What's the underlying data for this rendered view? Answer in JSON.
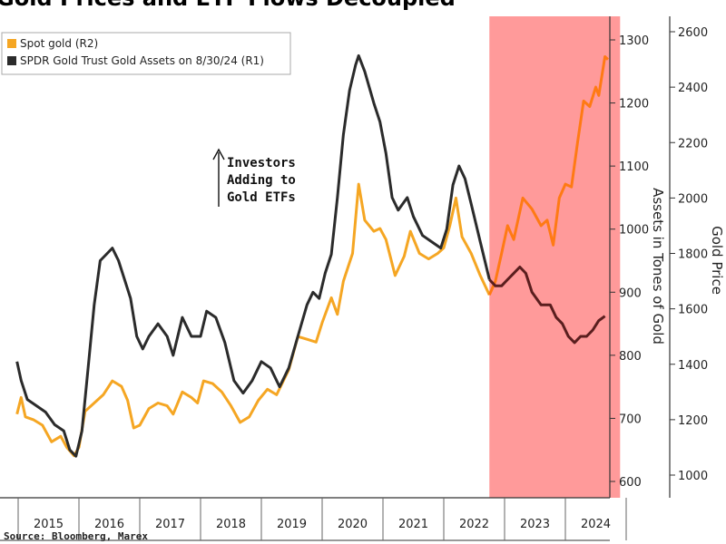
{
  "chart_data": {
    "type": "line",
    "title": "Gold Prices and ETF Flows Decoupled",
    "source": "Source: Bloomberg, Marex",
    "x_categories": [
      "2015",
      "2016",
      "2017",
      "2018",
      "2019",
      "2020",
      "2021",
      "2022",
      "2023",
      "2024"
    ],
    "left_axis": {
      "label": "Assets in Tones of Gold",
      "range": [
        570,
        1320
      ],
      "ticks": [
        600,
        700,
        800,
        900,
        1000,
        1100,
        1200,
        1300
      ]
    },
    "right_axis": {
      "label": "Gold Price",
      "range": [
        950,
        2650
      ],
      "ticks": [
        1000,
        1200,
        1400,
        1600,
        1800,
        2000,
        2200,
        2400,
        2600
      ]
    },
    "legend": {
      "placement": "top-left",
      "items": [
        {
          "label": "Spot gold (R2)",
          "color": "#F5A623"
        },
        {
          "label": "SPDR Gold Trust Gold Assets on 8/30/24 (R1)",
          "color": "#2b2b2b"
        }
      ]
    },
    "annotation": {
      "text_lines": [
        "Investors",
        "Adding to",
        "Gold ETFs"
      ]
    },
    "shaded_region": {
      "start": 2022.75,
      "end": 2024.9,
      "color": "#FF9A9A"
    },
    "series": [
      {
        "name": "Spot gold (R2)",
        "axis": "right",
        "color": "#F5A623",
        "color_in_shade": "#FF7A14",
        "points": [
          [
            2014.98,
            1220
          ],
          [
            2015.05,
            1280
          ],
          [
            2015.12,
            1210
          ],
          [
            2015.25,
            1200
          ],
          [
            2015.4,
            1180
          ],
          [
            2015.55,
            1120
          ],
          [
            2015.7,
            1140
          ],
          [
            2015.8,
            1100
          ],
          [
            2015.92,
            1070
          ],
          [
            2016.0,
            1100
          ],
          [
            2016.1,
            1230
          ],
          [
            2016.25,
            1260
          ],
          [
            2016.4,
            1290
          ],
          [
            2016.55,
            1340
          ],
          [
            2016.7,
            1320
          ],
          [
            2016.8,
            1270
          ],
          [
            2016.9,
            1170
          ],
          [
            2017.0,
            1180
          ],
          [
            2017.15,
            1240
          ],
          [
            2017.3,
            1260
          ],
          [
            2017.45,
            1250
          ],
          [
            2017.55,
            1220
          ],
          [
            2017.7,
            1300
          ],
          [
            2017.85,
            1280
          ],
          [
            2017.95,
            1260
          ],
          [
            2018.05,
            1340
          ],
          [
            2018.2,
            1330
          ],
          [
            2018.35,
            1300
          ],
          [
            2018.5,
            1250
          ],
          [
            2018.65,
            1190
          ],
          [
            2018.8,
            1210
          ],
          [
            2018.95,
            1270
          ],
          [
            2019.1,
            1310
          ],
          [
            2019.25,
            1290
          ],
          [
            2019.45,
            1380
          ],
          [
            2019.6,
            1500
          ],
          [
            2019.75,
            1490
          ],
          [
            2019.9,
            1480
          ],
          [
            2020.0,
            1550
          ],
          [
            2020.15,
            1640
          ],
          [
            2020.25,
            1580
          ],
          [
            2020.35,
            1700
          ],
          [
            2020.5,
            1800
          ],
          [
            2020.6,
            2050
          ],
          [
            2020.7,
            1920
          ],
          [
            2020.85,
            1880
          ],
          [
            2020.95,
            1890
          ],
          [
            2021.05,
            1850
          ],
          [
            2021.2,
            1720
          ],
          [
            2021.35,
            1790
          ],
          [
            2021.45,
            1880
          ],
          [
            2021.6,
            1800
          ],
          [
            2021.75,
            1780
          ],
          [
            2021.9,
            1800
          ],
          [
            2022.0,
            1820
          ],
          [
            2022.1,
            1900
          ],
          [
            2022.2,
            2000
          ],
          [
            2022.3,
            1860
          ],
          [
            2022.45,
            1800
          ],
          [
            2022.6,
            1720
          ],
          [
            2022.75,
            1650
          ],
          [
            2022.85,
            1700
          ],
          [
            2022.95,
            1800
          ],
          [
            2023.05,
            1900
          ],
          [
            2023.15,
            1850
          ],
          [
            2023.3,
            2000
          ],
          [
            2023.45,
            1960
          ],
          [
            2023.6,
            1900
          ],
          [
            2023.7,
            1920
          ],
          [
            2023.8,
            1830
          ],
          [
            2023.9,
            2000
          ],
          [
            2024.0,
            2050
          ],
          [
            2024.1,
            2040
          ],
          [
            2024.2,
            2200
          ],
          [
            2024.3,
            2350
          ],
          [
            2024.4,
            2330
          ],
          [
            2024.5,
            2400
          ],
          [
            2024.55,
            2370
          ],
          [
            2024.65,
            2510
          ],
          [
            2024.7,
            2500
          ]
        ]
      },
      {
        "name": "SPDR Gold Trust Gold Assets on 8/30/24 (R1)",
        "axis": "left",
        "color": "#2b2b2b",
        "color_in_shade": "#5a1e1e",
        "points": [
          [
            2014.98,
            790
          ],
          [
            2015.05,
            760
          ],
          [
            2015.15,
            730
          ],
          [
            2015.3,
            720
          ],
          [
            2015.45,
            710
          ],
          [
            2015.6,
            690
          ],
          [
            2015.75,
            680
          ],
          [
            2015.85,
            650
          ],
          [
            2015.95,
            640
          ],
          [
            2016.05,
            680
          ],
          [
            2016.15,
            780
          ],
          [
            2016.25,
            880
          ],
          [
            2016.35,
            950
          ],
          [
            2016.45,
            960
          ],
          [
            2016.55,
            970
          ],
          [
            2016.65,
            950
          ],
          [
            2016.75,
            920
          ],
          [
            2016.85,
            890
          ],
          [
            2016.95,
            830
          ],
          [
            2017.05,
            810
          ],
          [
            2017.15,
            830
          ],
          [
            2017.3,
            850
          ],
          [
            2017.45,
            830
          ],
          [
            2017.55,
            800
          ],
          [
            2017.7,
            860
          ],
          [
            2017.85,
            830
          ],
          [
            2018.0,
            830
          ],
          [
            2018.1,
            870
          ],
          [
            2018.25,
            860
          ],
          [
            2018.4,
            820
          ],
          [
            2018.55,
            760
          ],
          [
            2018.7,
            740
          ],
          [
            2018.85,
            760
          ],
          [
            2019.0,
            790
          ],
          [
            2019.15,
            780
          ],
          [
            2019.3,
            750
          ],
          [
            2019.45,
            780
          ],
          [
            2019.6,
            830
          ],
          [
            2019.75,
            880
          ],
          [
            2019.85,
            900
          ],
          [
            2019.95,
            890
          ],
          [
            2020.05,
            930
          ],
          [
            2020.15,
            960
          ],
          [
            2020.25,
            1050
          ],
          [
            2020.35,
            1150
          ],
          [
            2020.45,
            1220
          ],
          [
            2020.55,
            1260
          ],
          [
            2020.6,
            1275
          ],
          [
            2020.7,
            1250
          ],
          [
            2020.85,
            1200
          ],
          [
            2020.95,
            1170
          ],
          [
            2021.05,
            1120
          ],
          [
            2021.15,
            1050
          ],
          [
            2021.25,
            1030
          ],
          [
            2021.4,
            1050
          ],
          [
            2021.5,
            1020
          ],
          [
            2021.65,
            990
          ],
          [
            2021.8,
            980
          ],
          [
            2021.95,
            970
          ],
          [
            2022.05,
            1000
          ],
          [
            2022.15,
            1070
          ],
          [
            2022.25,
            1100
          ],
          [
            2022.35,
            1080
          ],
          [
            2022.45,
            1040
          ],
          [
            2022.6,
            980
          ],
          [
            2022.75,
            920
          ],
          [
            2022.85,
            910
          ],
          [
            2022.95,
            910
          ],
          [
            2023.05,
            920
          ],
          [
            2023.15,
            930
          ],
          [
            2023.25,
            940
          ],
          [
            2023.35,
            930
          ],
          [
            2023.45,
            900
          ],
          [
            2023.6,
            880
          ],
          [
            2023.75,
            880
          ],
          [
            2023.85,
            860
          ],
          [
            2023.95,
            850
          ],
          [
            2024.05,
            830
          ],
          [
            2024.15,
            820
          ],
          [
            2024.25,
            830
          ],
          [
            2024.35,
            830
          ],
          [
            2024.45,
            840
          ],
          [
            2024.55,
            855
          ],
          [
            2024.65,
            862
          ]
        ]
      }
    ]
  }
}
